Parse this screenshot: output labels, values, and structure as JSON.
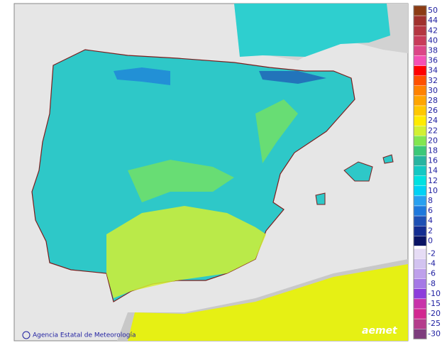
{
  "legend": {
    "items": [
      {
        "label": "50",
        "color": "#8c3c14"
      },
      {
        "label": "44",
        "color": "#a0322d"
      },
      {
        "label": "42",
        "color": "#b43741"
      },
      {
        "label": "40",
        "color": "#c83c5a"
      },
      {
        "label": "38",
        "color": "#dc4687"
      },
      {
        "label": "36",
        "color": "#f550b4"
      },
      {
        "label": "34",
        "color": "#ff0000"
      },
      {
        "label": "32",
        "color": "#ff5000"
      },
      {
        "label": "30",
        "color": "#ff8200"
      },
      {
        "label": "28",
        "color": "#ffa500"
      },
      {
        "label": "26",
        "color": "#ffc800"
      },
      {
        "label": "24",
        "color": "#ffeb00"
      },
      {
        "label": "22",
        "color": "#d2f032"
      },
      {
        "label": "20",
        "color": "#82e650"
      },
      {
        "label": "18",
        "color": "#3cc878"
      },
      {
        "label": "16",
        "color": "#28b4a0"
      },
      {
        "label": "14",
        "color": "#14c8c3"
      },
      {
        "label": "12",
        "color": "#00e1e1"
      },
      {
        "label": "10",
        "color": "#00d2f5"
      },
      {
        "label": "8",
        "color": "#28a0f0"
      },
      {
        "label": "6",
        "color": "#1e78dc"
      },
      {
        "label": "4",
        "color": "#1e50b4"
      },
      {
        "label": "2",
        "color": "#142d91"
      },
      {
        "label": "0",
        "color": "#0a1464"
      },
      {
        "label": "-2",
        "color": "#e6dcf5"
      },
      {
        "label": "-4",
        "color": "#d2c3f0"
      },
      {
        "label": "-6",
        "color": "#be a0eb"
      },
      {
        "label": "-8",
        "color": "#a578e6"
      },
      {
        "label": "-10",
        "color": "#8c3cdc"
      },
      {
        "label": "-15",
        "color": "#c832aa"
      },
      {
        "label": "-20",
        "color": "#d22891"
      },
      {
        "label": "-25",
        "color": "#b43c8c"
      },
      {
        "label": "-30",
        "color": "#7d3c7d"
      }
    ]
  },
  "credit": "Agencia Estatal de Meteorología",
  "logo": "aemet"
}
